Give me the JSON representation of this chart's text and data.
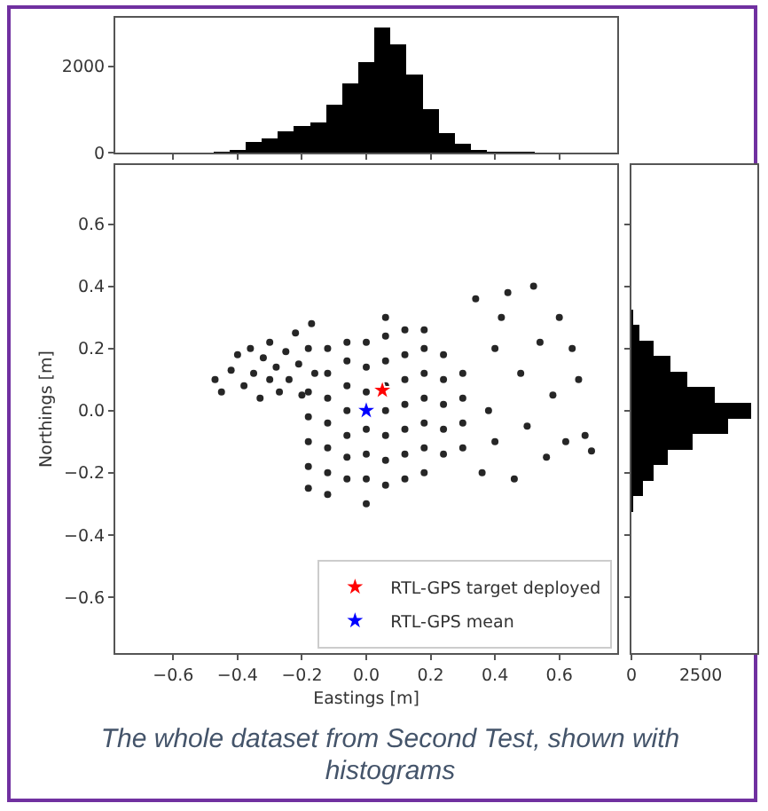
{
  "chart_data": [
    {
      "type": "histogram",
      "bins": [
        -0.475,
        -0.425,
        -0.375,
        -0.325,
        -0.275,
        -0.225,
        -0.175,
        -0.125,
        -0.075,
        -0.025,
        0.025,
        0.075,
        0.125,
        0.175,
        0.225,
        0.275,
        0.325,
        0.375,
        0.425,
        0.475,
        0.525,
        0.575,
        0.625,
        0.675,
        0.725
      ],
      "values": [
        20,
        60,
        250,
        320,
        500,
        620,
        700,
        1100,
        1600,
        2100,
        2900,
        2500,
        1800,
        1000,
        450,
        200,
        60,
        30,
        20,
        15,
        10,
        10,
        5,
        5
      ],
      "color": "#000000",
      "xlim": [
        -0.78,
        0.78
      ],
      "xticks": [
        {
          "value": -0.6,
          "label": null
        },
        {
          "value": -0.4,
          "label": null
        },
        {
          "value": -0.2,
          "label": null
        },
        {
          "value": 0,
          "label": null
        },
        {
          "value": 0.2,
          "label": null
        },
        {
          "value": 0.4,
          "label": null
        },
        {
          "value": 0.6,
          "label": null
        }
      ],
      "ylim": [
        0,
        3120
      ],
      "yticks": [
        0,
        2000
      ],
      "tick_labels": "y"
    },
    {
      "type": "scatter",
      "xlabel": "Eastings [m]",
      "ylabel": "Northings [m]",
      "xlim": [
        -0.78,
        0.78
      ],
      "xticks": [
        {
          "value": -0.6,
          "label": "−0.6"
        },
        {
          "value": -0.4,
          "label": "−0.4"
        },
        {
          "value": -0.2,
          "label": "−0.2"
        },
        {
          "value": 0,
          "label": "0.0"
        },
        {
          "value": 0.2,
          "label": "0.2"
        },
        {
          "value": 0.4,
          "label": "0.4"
        },
        {
          "value": 0.6,
          "label": "0.6"
        }
      ],
      "ylim": [
        -0.78,
        0.79
      ],
      "yticks": [
        {
          "value": -0.6,
          "label": "−0.6"
        },
        {
          "value": -0.4,
          "label": "−0.4"
        },
        {
          "value": -0.2,
          "label": "−0.2"
        },
        {
          "value": 0,
          "label": "0.0"
        },
        {
          "value": 0.2,
          "label": "0.2"
        },
        {
          "value": 0.4,
          "label": "0.4"
        },
        {
          "value": 0.6,
          "label": "0.6"
        }
      ],
      "legend": "bottom right",
      "series": [
        {
          "color": "#000000",
          "marker": "circle",
          "x": [
            -0.47,
            -0.45,
            -0.42,
            -0.4,
            -0.38,
            -0.36,
            -0.35,
            -0.33,
            -0.32,
            -0.3,
            -0.3,
            -0.28,
            -0.27,
            -0.25,
            -0.24,
            -0.22,
            -0.21,
            -0.2,
            -0.18,
            -0.17,
            -0.16,
            -0.18,
            -0.18,
            -0.18,
            -0.18,
            -0.18,
            -0.12,
            -0.12,
            -0.12,
            -0.12,
            -0.12,
            -0.12,
            -0.12,
            -0.06,
            -0.06,
            -0.06,
            -0.06,
            -0.06,
            -0.06,
            -0.06,
            0,
            0,
            0,
            0,
            0,
            0,
            0,
            0.06,
            0.06,
            0.06,
            0.06,
            0.06,
            0.06,
            0.06,
            0.06,
            0.12,
            0.12,
            0.12,
            0.12,
            0.12,
            0.12,
            0.12,
            0.18,
            0.18,
            0.18,
            0.18,
            0.18,
            0.18,
            0.18,
            0.24,
            0.24,
            0.24,
            0.24,
            0.24,
            0.3,
            0.3,
            0.3,
            0.3,
            0.36,
            0.38,
            0.4,
            0.42,
            0.44,
            0.46,
            0.48,
            0.5,
            0.52,
            0.54,
            0.56,
            0.58,
            0.6,
            0.62,
            0.64,
            0.66,
            0.68,
            0.7,
            0.34,
            0.4
          ],
          "values": [
            0.1,
            0.06,
            0.13,
            0.18,
            0.08,
            0.2,
            0.12,
            0.04,
            0.17,
            0.22,
            0.1,
            0.14,
            0.06,
            0.19,
            0.1,
            0.25,
            0.15,
            0.05,
            0.2,
            0.28,
            0.12,
            -0.25,
            -0.18,
            -0.1,
            -0.02,
            0.06,
            -0.27,
            -0.2,
            -0.12,
            -0.04,
            0.04,
            0.12,
            0.2,
            -0.22,
            -0.15,
            -0.08,
            0.0,
            0.08,
            0.16,
            0.22,
            -0.3,
            -0.22,
            -0.14,
            -0.06,
            0.06,
            0.14,
            0.22,
            -0.24,
            -0.16,
            -0.08,
            0.0,
            0.08,
            0.16,
            0.24,
            0.3,
            -0.22,
            -0.14,
            -0.06,
            0.02,
            0.1,
            0.18,
            0.26,
            -0.2,
            -0.12,
            -0.04,
            0.04,
            0.12,
            0.2,
            0.26,
            -0.14,
            -0.06,
            0.02,
            0.1,
            0.18,
            -0.12,
            -0.04,
            0.04,
            0.12,
            -0.2,
            0.0,
            -0.1,
            0.3,
            0.38,
            -0.22,
            0.12,
            -0.05,
            0.4,
            0.22,
            -0.15,
            0.05,
            0.3,
            -0.1,
            0.2,
            0.1,
            -0.08,
            -0.13,
            0.36,
            0.2
          ]
        },
        {
          "name": "RTL-GPS target deployed",
          "color": "#ff0000",
          "marker": "star",
          "x": [
            0.05
          ],
          "values": [
            0.065
          ]
        },
        {
          "name": "RTL-GPS mean",
          "color": "#0000ff",
          "marker": "star",
          "x": [
            0
          ],
          "values": [
            0
          ]
        }
      ],
      "annotations": [
        "The whole dataset from Second Test, shown with histograms"
      ]
    },
    {
      "type": "histogram",
      "orientation": "horizontal",
      "bins": [
        -0.325,
        -0.275,
        -0.225,
        -0.175,
        -0.125,
        -0.075,
        -0.025,
        0.025,
        0.075,
        0.125,
        0.175,
        0.225,
        0.275,
        0.325
      ],
      "values": [
        50,
        400,
        800,
        1300,
        2200,
        3500,
        4300,
        3000,
        2000,
        1400,
        800,
        300,
        50
      ],
      "color": "#000000",
      "xlim": [
        0,
        4540
      ],
      "xticks": [
        0,
        2500
      ],
      "ylim": [
        -0.78,
        0.79
      ],
      "yticks": [
        {
          "value": -0.6,
          "label": null
        },
        {
          "value": -0.4,
          "label": null
        },
        {
          "value": -0.2,
          "label": null
        },
        {
          "value": 0,
          "label": null
        },
        {
          "value": 0.2,
          "label": null
        },
        {
          "value": 0.4,
          "label": null
        },
        {
          "value": 0.6,
          "label": null
        }
      ],
      "tick_labels": "x"
    }
  ]
}
